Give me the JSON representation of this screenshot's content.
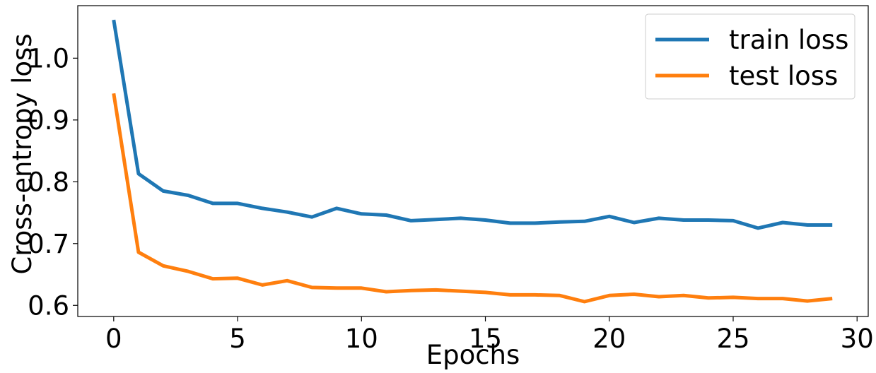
{
  "chart_data": {
    "type": "line",
    "xlabel": "Epochs",
    "ylabel": "Cross-entropy loss",
    "xlim": [
      -1.45,
      30.45
    ],
    "ylim": [
      0.582,
      1.085
    ],
    "xticks": [
      0,
      5,
      10,
      15,
      20,
      25,
      30
    ],
    "yticks": [
      0.6,
      0.7,
      0.8,
      0.9,
      1.0
    ],
    "legend_position": "top-right",
    "grid": false,
    "x": [
      0,
      1,
      2,
      3,
      4,
      5,
      6,
      7,
      8,
      9,
      10,
      11,
      12,
      13,
      14,
      15,
      16,
      17,
      18,
      19,
      20,
      21,
      22,
      23,
      24,
      25,
      26,
      27,
      28,
      29
    ],
    "series": [
      {
        "name": "train loss",
        "color": "#1f77b4",
        "values": [
          1.062,
          0.813,
          0.785,
          0.778,
          0.765,
          0.765,
          0.757,
          0.751,
          0.743,
          0.757,
          0.748,
          0.746,
          0.737,
          0.739,
          0.741,
          0.738,
          0.733,
          0.733,
          0.735,
          0.736,
          0.744,
          0.734,
          0.741,
          0.738,
          0.738,
          0.737,
          0.725,
          0.734,
          0.73,
          0.73
        ]
      },
      {
        "name": "test loss",
        "color": "#ff7f0e",
        "values": [
          0.943,
          0.686,
          0.664,
          0.655,
          0.643,
          0.644,
          0.633,
          0.64,
          0.629,
          0.628,
          0.628,
          0.622,
          0.624,
          0.625,
          0.623,
          0.621,
          0.617,
          0.617,
          0.616,
          0.606,
          0.616,
          0.618,
          0.614,
          0.616,
          0.612,
          0.613,
          0.611,
          0.611,
          0.607,
          0.611
        ]
      }
    ]
  }
}
